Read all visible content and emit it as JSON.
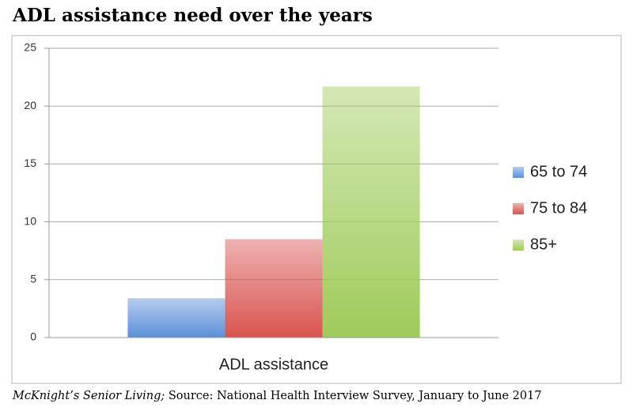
{
  "chart_data": {
    "type": "bar",
    "title": "ADL assistance need over the years",
    "categories": [
      "ADL assistance"
    ],
    "series": [
      {
        "name": "65 to 74",
        "color": "#5b8fd8",
        "values": [
          3.4
        ]
      },
      {
        "name": "75 to 84",
        "color": "#d9534f",
        "values": [
          8.5
        ]
      },
      {
        "name": "85+",
        "color": "#9fcb5a",
        "values": [
          21.7
        ]
      }
    ],
    "ylim": [
      0,
      25
    ],
    "yticks": [
      0,
      5,
      10,
      15,
      20,
      25
    ],
    "grid": true,
    "legend": "right",
    "caption": {
      "publication": "McKnight’s Senior Living;",
      "text": " Source: National Health Interview Survey, January to June 2017"
    }
  }
}
